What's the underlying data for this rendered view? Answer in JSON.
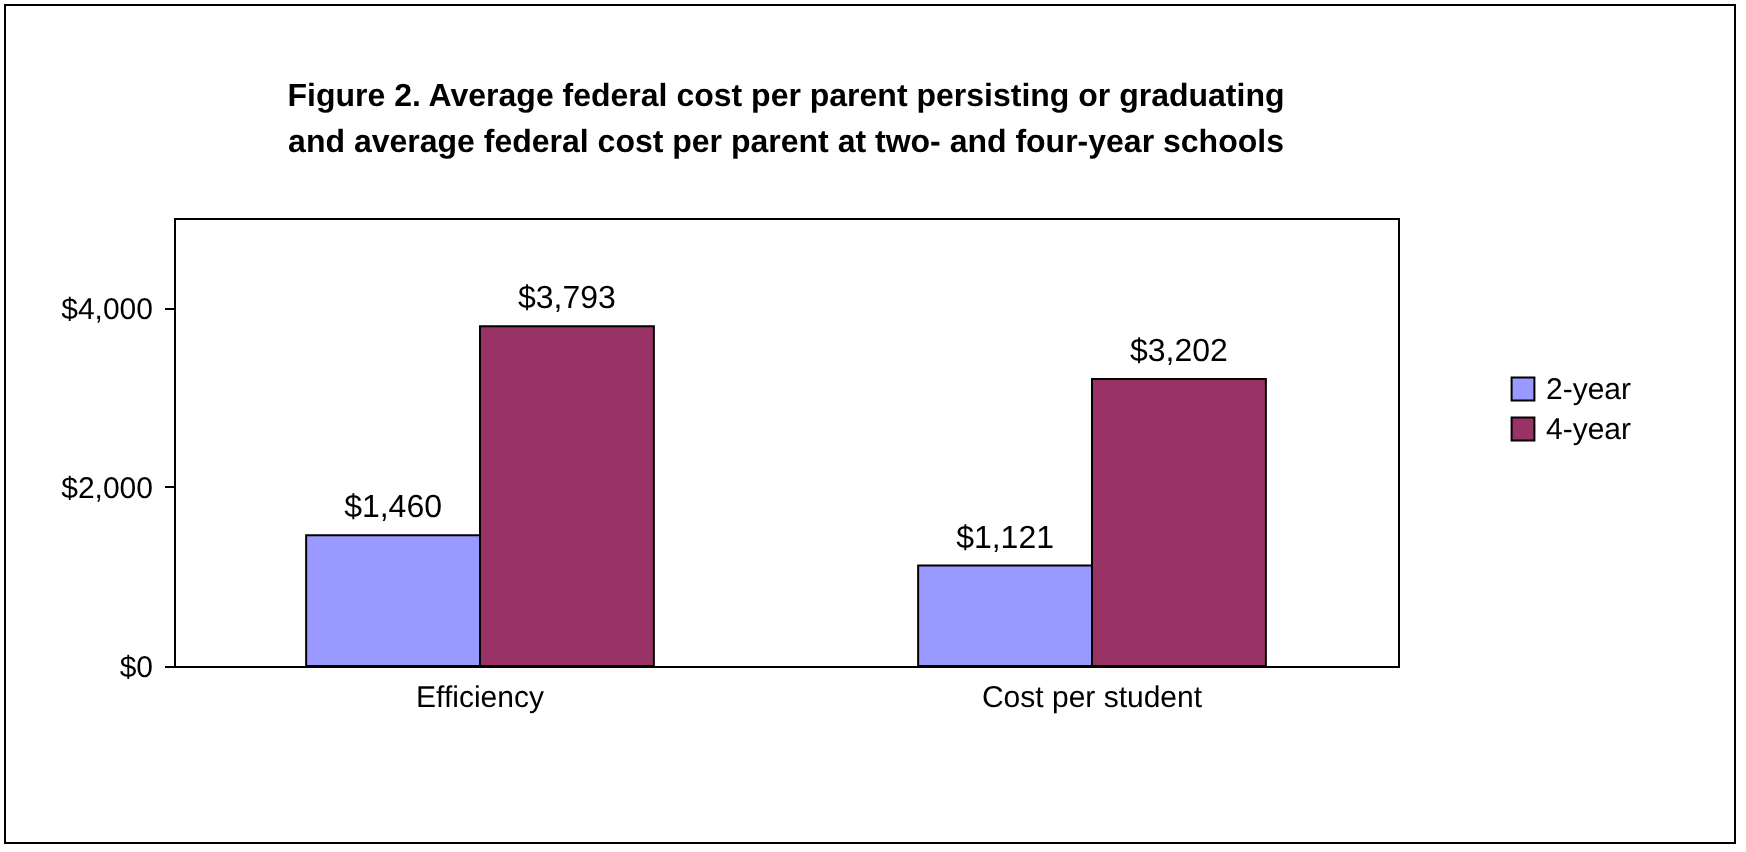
{
  "chart_data": {
    "type": "bar",
    "title": "Figure 2. Average federal cost per parent persisting or graduating\nand average federal cost per parent at two- and four-year schools",
    "categories": [
      "Efficiency",
      "Cost per student"
    ],
    "series": [
      {
        "name": "2-year",
        "color": "#9999ff",
        "values": [
          1460,
          1121
        ],
        "value_labels": [
          "$1,460",
          "$1,121"
        ]
      },
      {
        "name": "4-year",
        "color": "#993366",
        "values": [
          3793,
          3202
        ],
        "value_labels": [
          "$3,793",
          "$3,202"
        ]
      }
    ],
    "ylim": [
      0,
      5000
    ],
    "yticks": [
      {
        "value": 0,
        "label": "$0"
      },
      {
        "value": 2000,
        "label": "$2,000"
      },
      {
        "value": 4000,
        "label": "$4,000"
      }
    ],
    "legend": "right"
  }
}
